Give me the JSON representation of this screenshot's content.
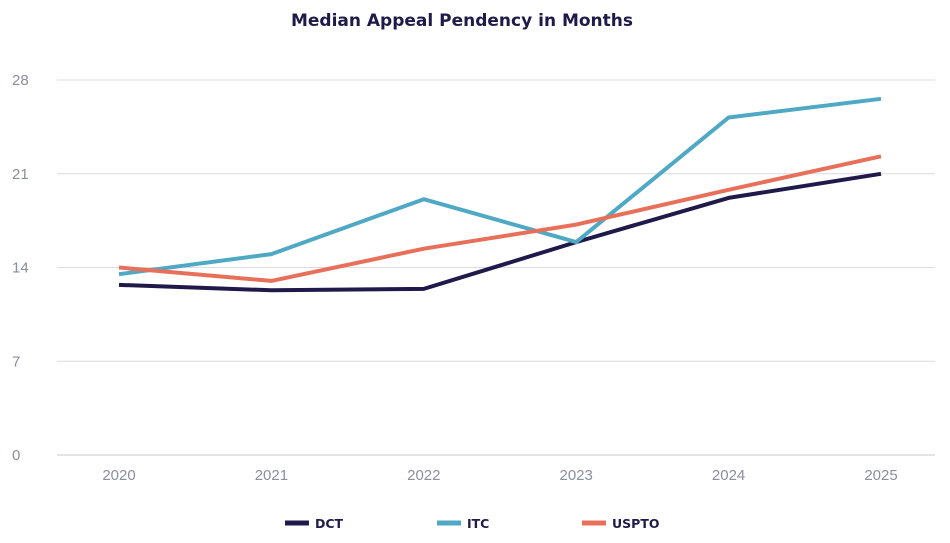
{
  "chart_data": {
    "type": "line",
    "title": "Median Appeal Pendency in Months",
    "xlabel": "",
    "ylabel": "",
    "categories": [
      "2020",
      "2021",
      "2022",
      "2023",
      "2024",
      "2025"
    ],
    "ylim": [
      0,
      28
    ],
    "yticks": [
      0,
      7,
      14,
      21,
      28
    ],
    "grid": true,
    "legend_position": "bottom",
    "series": [
      {
        "name": "DCT",
        "color": "#1f1a4a",
        "values": [
          12.7,
          12.3,
          12.4,
          15.9,
          19.2,
          21.0
        ]
      },
      {
        "name": "ITC",
        "color": "#4fa9c5",
        "values": [
          13.5,
          15.0,
          19.1,
          15.9,
          25.2,
          26.6
        ]
      },
      {
        "name": "USPTO",
        "color": "#e8705a",
        "values": [
          14.0,
          13.0,
          15.4,
          17.2,
          19.8,
          22.3
        ]
      }
    ]
  }
}
